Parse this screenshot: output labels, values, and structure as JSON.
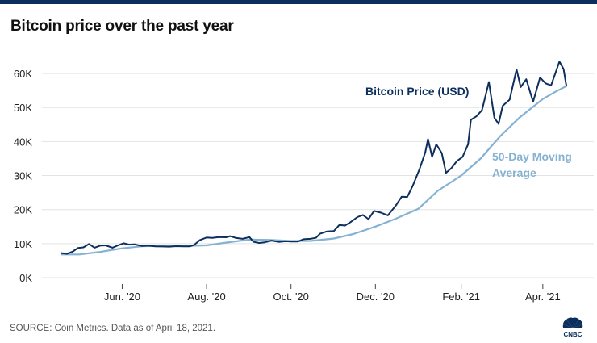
{
  "title": "Bitcoin price over the past year",
  "source": "SOURCE: Coin Metrics. Data as of April 18, 2021.",
  "logo_text": "CNBC",
  "colors": {
    "price": "#0d2f5e",
    "moving_average": "#85b2d2",
    "grid": "#e3e3e3",
    "topbar": "#0b2e5c"
  },
  "chart_data": {
    "type": "line",
    "title": "Bitcoin price over the past year",
    "xlabel": "",
    "ylabel": "",
    "x_range": [
      "2020-04-18",
      "2021-04-18"
    ],
    "ylim": [
      0,
      65000
    ],
    "grid": true,
    "y_ticks": [
      {
        "value": 0,
        "label": "0K"
      },
      {
        "value": 10000,
        "label": "10K"
      },
      {
        "value": 20000,
        "label": "20K"
      },
      {
        "value": 30000,
        "label": "30K"
      },
      {
        "value": 40000,
        "label": "40K"
      },
      {
        "value": 50000,
        "label": "50K"
      },
      {
        "value": 60000,
        "label": "60K"
      }
    ],
    "x_ticks": [
      {
        "date": "2020-06-01",
        "label": "Jun. '20"
      },
      {
        "date": "2020-08-01",
        "label": "Aug. '20"
      },
      {
        "date": "2020-10-01",
        "label": "Oct. '20"
      },
      {
        "date": "2020-12-01",
        "label": "Dec. '20"
      },
      {
        "date": "2021-02-01",
        "label": "Feb. '21"
      },
      {
        "date": "2021-04-01",
        "label": "Apr. '21"
      }
    ],
    "annotations": [
      {
        "text": "Bitcoin Price (USD)",
        "series": "price"
      },
      {
        "text": "50-Day Moving",
        "series": "moving_average"
      },
      {
        "text": "Average",
        "series": "moving_average"
      }
    ],
    "series": [
      {
        "name": "Bitcoin Price (USD)",
        "key": "price",
        "points": [
          [
            "2020-04-18",
            7200
          ],
          [
            "2020-04-22",
            7000
          ],
          [
            "2020-04-26",
            7600
          ],
          [
            "2020-04-30",
            8700
          ],
          [
            "2020-05-04",
            8900
          ],
          [
            "2020-05-08",
            9900
          ],
          [
            "2020-05-12",
            8800
          ],
          [
            "2020-05-16",
            9400
          ],
          [
            "2020-05-20",
            9500
          ],
          [
            "2020-05-25",
            8800
          ],
          [
            "2020-05-29",
            9500
          ],
          [
            "2020-06-02",
            10100
          ],
          [
            "2020-06-06",
            9700
          ],
          [
            "2020-06-10",
            9800
          ],
          [
            "2020-06-15",
            9300
          ],
          [
            "2020-06-20",
            9400
          ],
          [
            "2020-06-25",
            9200
          ],
          [
            "2020-06-30",
            9150
          ],
          [
            "2020-07-05",
            9100
          ],
          [
            "2020-07-10",
            9250
          ],
          [
            "2020-07-15",
            9200
          ],
          [
            "2020-07-20",
            9200
          ],
          [
            "2020-07-23",
            9600
          ],
          [
            "2020-07-27",
            11000
          ],
          [
            "2020-08-01",
            11800
          ],
          [
            "2020-08-05",
            11700
          ],
          [
            "2020-08-10",
            11900
          ],
          [
            "2020-08-15",
            11850
          ],
          [
            "2020-08-18",
            12200
          ],
          [
            "2020-08-22",
            11700
          ],
          [
            "2020-08-27",
            11400
          ],
          [
            "2020-09-01",
            11900
          ],
          [
            "2020-09-04",
            10500
          ],
          [
            "2020-09-08",
            10200
          ],
          [
            "2020-09-12",
            10400
          ],
          [
            "2020-09-17",
            10900
          ],
          [
            "2020-09-22",
            10500
          ],
          [
            "2020-09-27",
            10700
          ],
          [
            "2020-10-01",
            10600
          ],
          [
            "2020-10-06",
            10600
          ],
          [
            "2020-10-10",
            11300
          ],
          [
            "2020-10-15",
            11400
          ],
          [
            "2020-10-19",
            11700
          ],
          [
            "2020-10-22",
            12900
          ],
          [
            "2020-10-27",
            13600
          ],
          [
            "2020-11-01",
            13700
          ],
          [
            "2020-11-05",
            15500
          ],
          [
            "2020-11-09",
            15300
          ],
          [
            "2020-11-13",
            16300
          ],
          [
            "2020-11-18",
            17800
          ],
          [
            "2020-11-22",
            18400
          ],
          [
            "2020-11-26",
            17200
          ],
          [
            "2020-11-30",
            19600
          ],
          [
            "2020-12-05",
            19100
          ],
          [
            "2020-12-10",
            18300
          ],
          [
            "2020-12-16",
            21300
          ],
          [
            "2020-12-20",
            23800
          ],
          [
            "2020-12-24",
            23700
          ],
          [
            "2020-12-28",
            27000
          ],
          [
            "2021-01-02",
            32000
          ],
          [
            "2021-01-06",
            36800
          ],
          [
            "2021-01-08",
            40700
          ],
          [
            "2021-01-11",
            35500
          ],
          [
            "2021-01-14",
            39200
          ],
          [
            "2021-01-18",
            36600
          ],
          [
            "2021-01-21",
            30800
          ],
          [
            "2021-01-25",
            32200
          ],
          [
            "2021-01-29",
            34300
          ],
          [
            "2021-02-02",
            35500
          ],
          [
            "2021-02-06",
            39200
          ],
          [
            "2021-02-08",
            46400
          ],
          [
            "2021-02-12",
            47400
          ],
          [
            "2021-02-16",
            49200
          ],
          [
            "2021-02-21",
            57500
          ],
          [
            "2021-02-25",
            47000
          ],
          [
            "2021-02-28",
            45200
          ],
          [
            "2021-03-03",
            50500
          ],
          [
            "2021-03-08",
            52300
          ],
          [
            "2021-03-13",
            61200
          ],
          [
            "2021-03-16",
            56000
          ],
          [
            "2021-03-20",
            58300
          ],
          [
            "2021-03-25",
            51700
          ],
          [
            "2021-03-30",
            58800
          ],
          [
            "2021-04-03",
            57100
          ],
          [
            "2021-04-07",
            56500
          ],
          [
            "2021-04-10",
            60000
          ],
          [
            "2021-04-13",
            63500
          ],
          [
            "2021-04-16",
            61300
          ],
          [
            "2021-04-18",
            56400
          ]
        ]
      },
      {
        "name": "50-Day Moving Average",
        "key": "moving_average",
        "points": [
          [
            "2020-04-18",
            6800
          ],
          [
            "2020-05-01",
            6800
          ],
          [
            "2020-05-15",
            7500
          ],
          [
            "2020-06-01",
            8600
          ],
          [
            "2020-06-15",
            9200
          ],
          [
            "2020-07-01",
            9400
          ],
          [
            "2020-07-15",
            9300
          ],
          [
            "2020-08-01",
            9500
          ],
          [
            "2020-08-15",
            10300
          ],
          [
            "2020-09-01",
            11200
          ],
          [
            "2020-09-15",
            11100
          ],
          [
            "2020-10-01",
            10800
          ],
          [
            "2020-10-15",
            10800
          ],
          [
            "2020-11-01",
            11500
          ],
          [
            "2020-11-15",
            12800
          ],
          [
            "2020-12-01",
            15000
          ],
          [
            "2020-12-15",
            17200
          ],
          [
            "2021-01-01",
            20200
          ],
          [
            "2021-01-15",
            25500
          ],
          [
            "2021-02-01",
            30000
          ],
          [
            "2021-02-15",
            35000
          ],
          [
            "2021-03-01",
            41500
          ],
          [
            "2021-03-15",
            47000
          ],
          [
            "2021-04-01",
            52500
          ],
          [
            "2021-04-10",
            54600
          ],
          [
            "2021-04-18",
            56300
          ]
        ]
      }
    ]
  }
}
